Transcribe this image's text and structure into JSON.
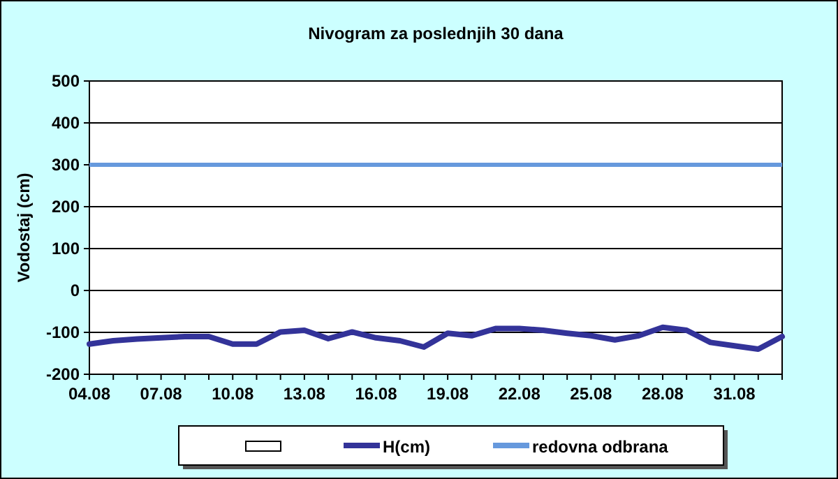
{
  "chart_data": {
    "type": "line",
    "title": "Nivogram za poslednjih 30 dana",
    "ylabel": "Vodostaj (cm)",
    "categories": [
      "04.08",
      null,
      null,
      "07.08",
      null,
      null,
      "10.08",
      null,
      null,
      "13.08",
      null,
      null,
      "16.08",
      null,
      null,
      "19.08",
      null,
      null,
      "22.08",
      null,
      null,
      "25.08",
      null,
      null,
      "28.08",
      null,
      null,
      "31.08",
      null,
      null
    ],
    "series": [
      {
        "name": "H(cm)",
        "color": "#333399",
        "values": [
          -128,
          -120,
          -116,
          -113,
          -110,
          -110,
          -128,
          -128,
          -99,
          -95,
          -115,
          -99,
          -113,
          -120,
          -135,
          -102,
          -108,
          -91,
          -91,
          -95,
          -102,
          -108,
          -118,
          -108,
          -88,
          -95,
          -124,
          -132,
          -140,
          -110
        ]
      }
    ],
    "ref_lines": [
      {
        "axis": "y",
        "value": 300,
        "label": "redovna odbrana",
        "color": "#6699dd"
      }
    ],
    "ylim": [
      -200,
      500
    ],
    "yticks": [
      -200,
      -100,
      0,
      100,
      200,
      300,
      400,
      500
    ],
    "grid": "y",
    "legend": "bottom",
    "marker": "none",
    "line_style": "solid"
  }
}
